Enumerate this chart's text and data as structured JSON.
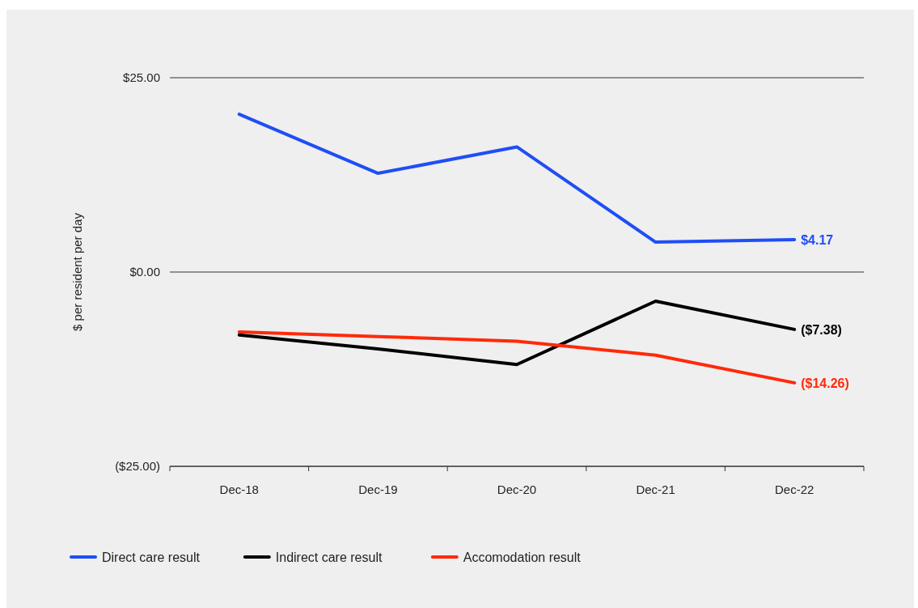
{
  "chart_data": {
    "type": "line",
    "ylabel": "$ per resident per day",
    "categories": [
      "Dec-18",
      "Dec-19",
      "Dec-20",
      "Dec-21",
      "Dec-22"
    ],
    "series": [
      {
        "name": "Direct care result",
        "color": "#1f4ef5",
        "values": [
          20.3,
          12.7,
          16.1,
          3.85,
          4.17
        ],
        "value_labels": [
          null,
          null,
          null,
          null,
          "$4.17"
        ]
      },
      {
        "name": "Indirect care result",
        "color": "#000000",
        "values": [
          -8.1,
          -9.9,
          -11.9,
          -3.75,
          -7.38
        ],
        "value_labels": [
          null,
          null,
          null,
          null,
          "($7.38)"
        ]
      },
      {
        "name": "Accomodation result",
        "color": "#ff2a0a",
        "values": [
          -7.7,
          -8.3,
          -8.9,
          -10.7,
          -14.26
        ],
        "value_labels": [
          null,
          null,
          null,
          null,
          "($14.26)"
        ]
      }
    ],
    "ylim": [
      -25,
      25
    ],
    "yticks": [
      {
        "value": -25,
        "label": "($25.00)"
      },
      {
        "value": 0,
        "label": "$0.00"
      },
      {
        "value": 25,
        "label": "$25.00"
      }
    ],
    "grid": "y",
    "legend": "bottom",
    "marker": "none",
    "line_style": "solid"
  }
}
